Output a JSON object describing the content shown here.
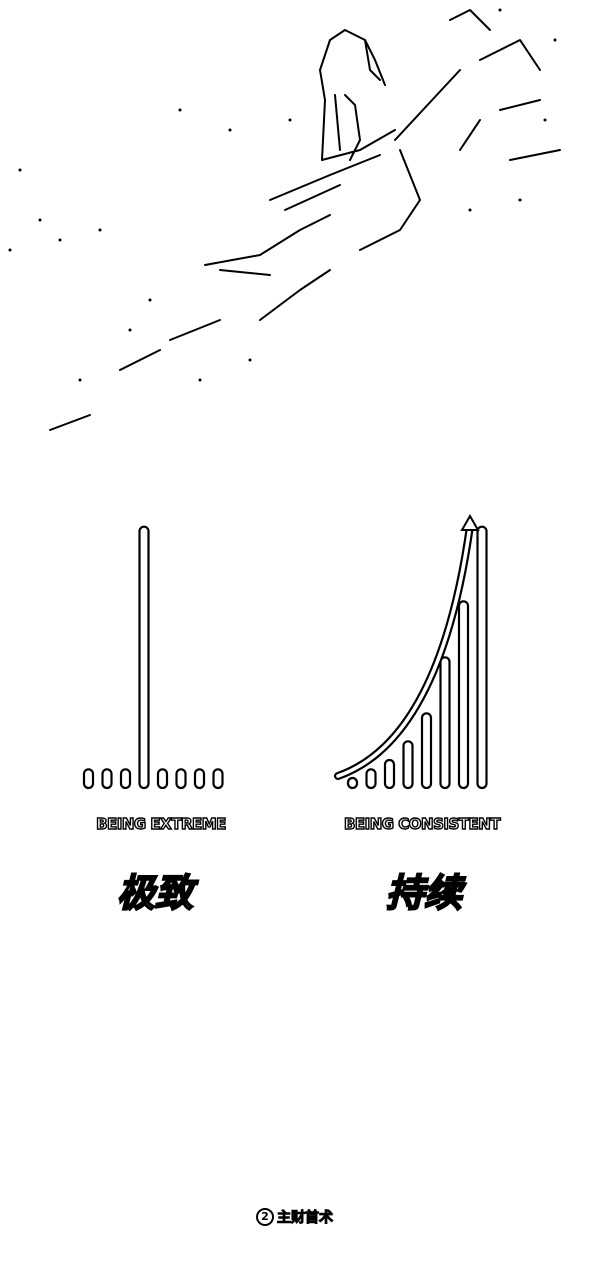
{
  "hero": {
    "description_icon": "skier-sketch-icon"
  },
  "left_panel": {
    "label": "BEING EXTREME",
    "chinese": "极致"
  },
  "right_panel": {
    "label": "BEING CONSISTENT",
    "chinese": "持续"
  },
  "footer": {
    "logo_glyph": "2",
    "text": "主财首术"
  },
  "chart_data": [
    {
      "type": "bar",
      "values": [
        1,
        1,
        1,
        14,
        1,
        1,
        1,
        1
      ],
      "title": "",
      "xlabel": "BEING EXTREME",
      "ylabel": "",
      "ylim": [
        0,
        15
      ]
    },
    {
      "type": "bar",
      "values": [
        0.5,
        1,
        1.5,
        2.5,
        4,
        7,
        10,
        14
      ],
      "title": "",
      "xlabel": "BEING CONSISTENT",
      "ylabel": "",
      "ylim": [
        0,
        15
      ],
      "annotations": [
        "rising-curve-arrow"
      ]
    }
  ]
}
